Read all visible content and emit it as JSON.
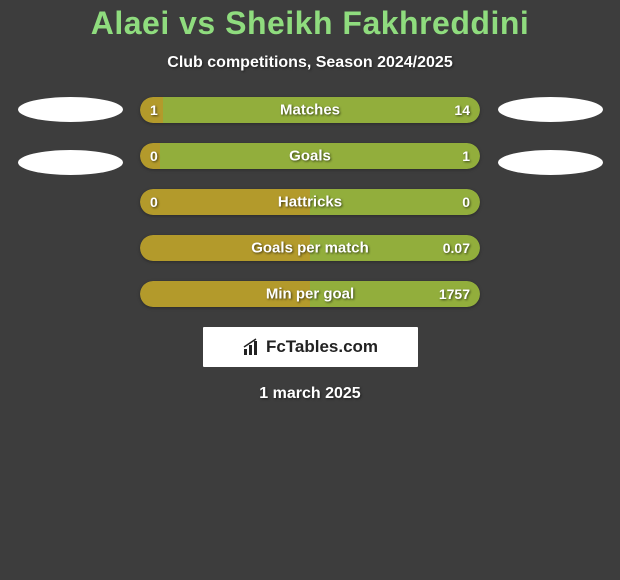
{
  "title": {
    "player1": "Alaei",
    "vs": "vs",
    "player2": "Sheikh Fakhreddini",
    "player1_color": "#8fdc7e",
    "vs_color": "#8fdc7e",
    "player2_color": "#8fdc7e"
  },
  "subtitle": "Club competitions, Season 2024/2025",
  "colors": {
    "background": "#3d3d3d",
    "left_bar": "#b39a2b",
    "right_bar": "#92ae3c",
    "avatar": "#ffffff",
    "text": "#ffffff"
  },
  "stats": [
    {
      "label": "Matches",
      "left_value": "1",
      "right_value": "14",
      "left_pct": 6.67,
      "right_pct": 93.33
    },
    {
      "label": "Goals",
      "left_value": "0",
      "right_value": "1",
      "left_pct": 6,
      "right_pct": 94
    },
    {
      "label": "Hattricks",
      "left_value": "0",
      "right_value": "0",
      "left_pct": 50,
      "right_pct": 50
    },
    {
      "label": "Goals per match",
      "left_value": "",
      "right_value": "0.07",
      "left_pct": 50,
      "right_pct": 50
    },
    {
      "label": "Min per goal",
      "left_value": "",
      "right_value": "1757",
      "left_pct": 50,
      "right_pct": 50
    }
  ],
  "logo": {
    "text": "FcTables.com"
  },
  "date": "1 march 2025",
  "bar_style": {
    "height": 26,
    "border_radius": 13,
    "gap": 20,
    "label_fontsize": 15,
    "value_fontsize": 14
  }
}
